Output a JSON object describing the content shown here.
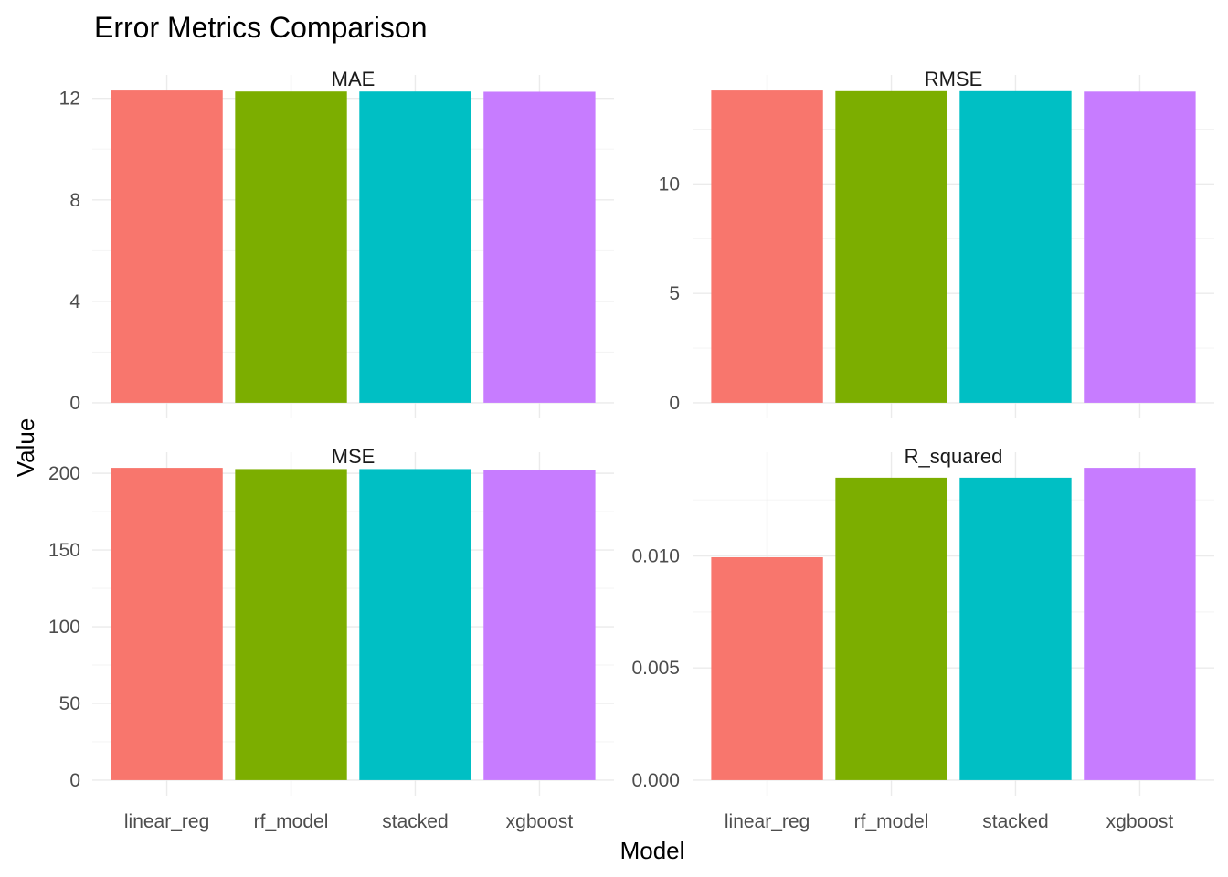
{
  "chart_data": {
    "type": "bar",
    "title": "Error Metrics Comparison",
    "xlabel": "Model",
    "ylabel": "Value",
    "categories": [
      "linear_reg",
      "rf_model",
      "stacked",
      "xgboost"
    ],
    "colors": [
      "#F8766D",
      "#7CAE00",
      "#00BFC4",
      "#C77CFF"
    ],
    "legend": "none",
    "grid": true,
    "facets": [
      {
        "name": "MAE",
        "values": [
          12.31,
          12.27,
          12.27,
          12.26
        ],
        "ylim": [
          0,
          12.31
        ],
        "yticks": [
          0,
          4,
          8,
          12
        ],
        "ytick_labels": [
          "0",
          "4",
          "8",
          "12"
        ]
      },
      {
        "name": "RMSE",
        "values": [
          14.27,
          14.24,
          14.24,
          14.22
        ],
        "ylim": [
          0,
          14.27
        ],
        "yticks": [
          0,
          5,
          10
        ],
        "ytick_labels": [
          "0",
          "5",
          "10"
        ]
      },
      {
        "name": "MSE",
        "values": [
          203.6,
          202.8,
          202.8,
          202.2
        ],
        "ylim": [
          0,
          203.6
        ],
        "yticks": [
          0,
          50,
          100,
          150,
          200
        ],
        "ytick_labels": [
          "0",
          "50",
          "100",
          "150",
          "200"
        ]
      },
      {
        "name": "R_squared",
        "values": [
          0.00994,
          0.01349,
          0.01349,
          0.01393
        ],
        "ylim": [
          0,
          0.01393
        ],
        "yticks": [
          0,
          0.005,
          0.01
        ],
        "ytick_labels": [
          "0.000",
          "0.005",
          "0.010"
        ]
      }
    ]
  }
}
